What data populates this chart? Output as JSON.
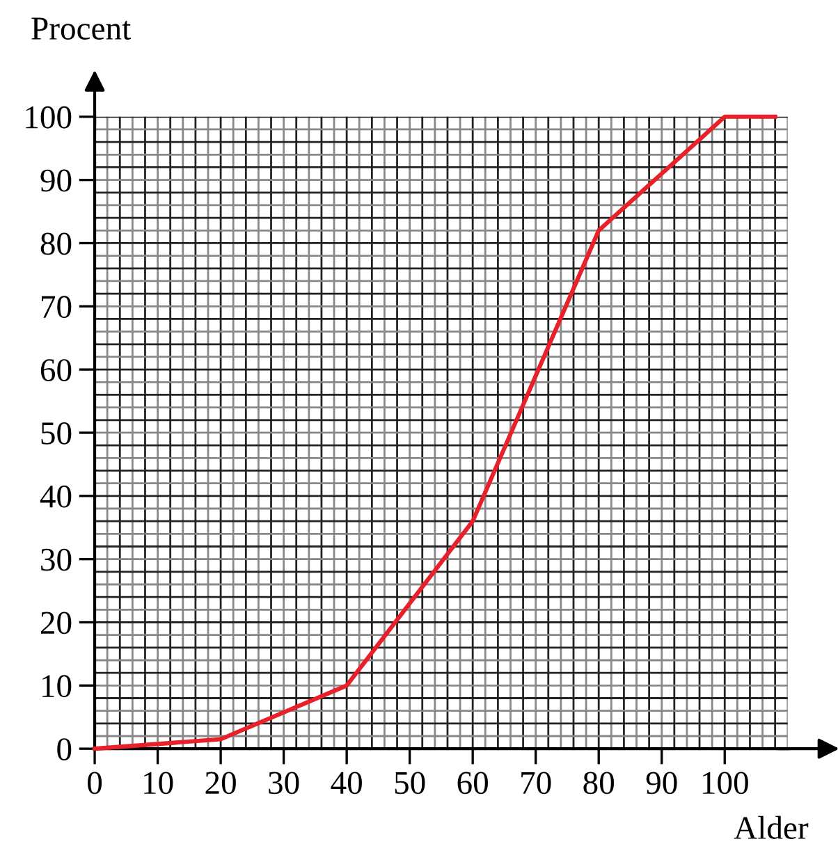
{
  "chart_data": {
    "type": "line",
    "xlabel": "Alder",
    "ylabel": "Procent",
    "x": [
      0,
      20,
      40,
      60,
      80,
      100,
      108
    ],
    "series": [
      {
        "color": "#e8202a",
        "values": [
          0,
          1.5,
          10,
          36,
          82,
          100,
          100
        ]
      }
    ],
    "xlim": [
      0,
      110
    ],
    "ylim": [
      0,
      100
    ],
    "xticks": [
      0,
      10,
      20,
      30,
      40,
      50,
      60,
      70,
      80,
      90,
      100
    ],
    "yticks": [
      0,
      10,
      20,
      30,
      40,
      50,
      60,
      70,
      80,
      90,
      100
    ],
    "grid": true,
    "marker": "none",
    "line_style": "solid"
  }
}
